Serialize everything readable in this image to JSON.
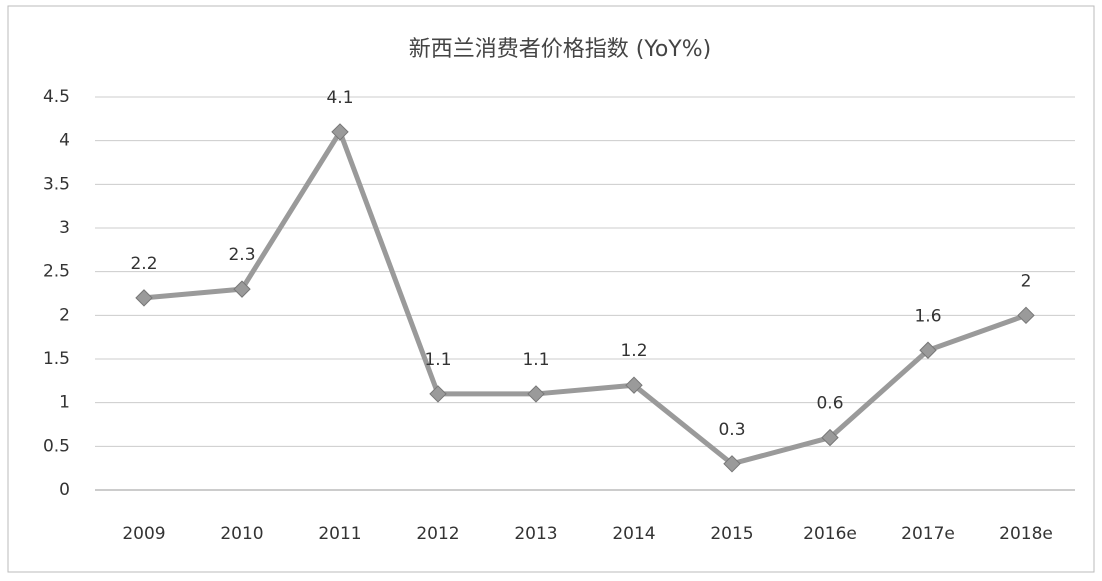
{
  "chart_data": {
    "type": "line",
    "title": "新西兰消费者价格指数 (YoY%)",
    "categories": [
      "2009",
      "2010",
      "2011",
      "2012",
      "2013",
      "2014",
      "2015",
      "2016e",
      "2017e",
      "2018e"
    ],
    "series": [
      {
        "name": "新西兰消费者价格指数",
        "color": "#9a9a9a",
        "values": [
          2.2,
          2.3,
          4.1,
          1.1,
          1.1,
          1.2,
          0.3,
          0.6,
          1.6,
          2
        ]
      }
    ],
    "ylim": [
      0,
      4.5
    ],
    "yticks": [
      0,
      0.5,
      1,
      1.5,
      2,
      2.5,
      3,
      3.5,
      4,
      4.5
    ],
    "grid": true
  }
}
